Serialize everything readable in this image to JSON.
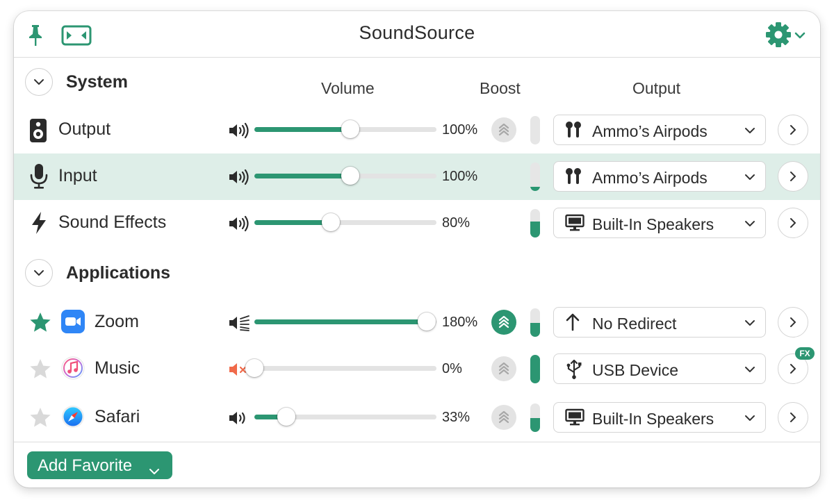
{
  "window": {
    "title": "SoundSource"
  },
  "colors": {
    "accent": "#2c9672",
    "mute": "#f06a4a",
    "highlight_row": "#deeee8"
  },
  "system": {
    "title": "System",
    "columns": {
      "volume": "Volume",
      "boost": "Boost",
      "output": "Output"
    },
    "rows": [
      {
        "label": "Output",
        "icon": "speaker-icon",
        "volume_percent": 100,
        "volume_text": "100%",
        "boost": "off",
        "meter_level": 0.0,
        "device": "Ammo’s Airpods",
        "device_icon": "airpods-icon",
        "highlighted": false
      },
      {
        "label": "Input",
        "icon": "microphone-icon",
        "volume_percent": 100,
        "volume_text": "100%",
        "boost": null,
        "meter_level": 0.15,
        "device": "Ammo’s Airpods",
        "device_icon": "airpods-icon",
        "highlighted": true
      },
      {
        "label": "Sound Effects",
        "icon": "bolt-icon",
        "volume_percent": 80,
        "volume_text": "80%",
        "boost": null,
        "meter_level": 0.55,
        "device": "Built-In Speakers",
        "device_icon": "display-icon",
        "highlighted": false
      }
    ]
  },
  "applications": {
    "title": "Applications",
    "rows": [
      {
        "label": "Zoom",
        "icon": "zoom-icon",
        "favorite": true,
        "volume_percent": 180,
        "volume_text": "180%",
        "boost": "on",
        "meter_level": 0.5,
        "device": "No Redirect",
        "device_icon": "arrow-up-icon",
        "fx": false
      },
      {
        "label": "Music",
        "icon": "music-icon",
        "favorite": false,
        "muted": true,
        "volume_percent": 0,
        "volume_text": "0%",
        "boost": "off",
        "meter_level": 1.0,
        "device": "USB Device",
        "device_icon": "usb-icon",
        "fx": true,
        "fx_label": "FX"
      },
      {
        "label": "Safari",
        "icon": "safari-icon",
        "favorite": false,
        "volume_percent": 33,
        "volume_text": "33%",
        "boost": "off",
        "meter_level": 0.5,
        "device": "Built-In Speakers",
        "device_icon": "display-icon",
        "fx": false
      }
    ]
  },
  "footer": {
    "add_favorite_label": "Add Favorite"
  }
}
